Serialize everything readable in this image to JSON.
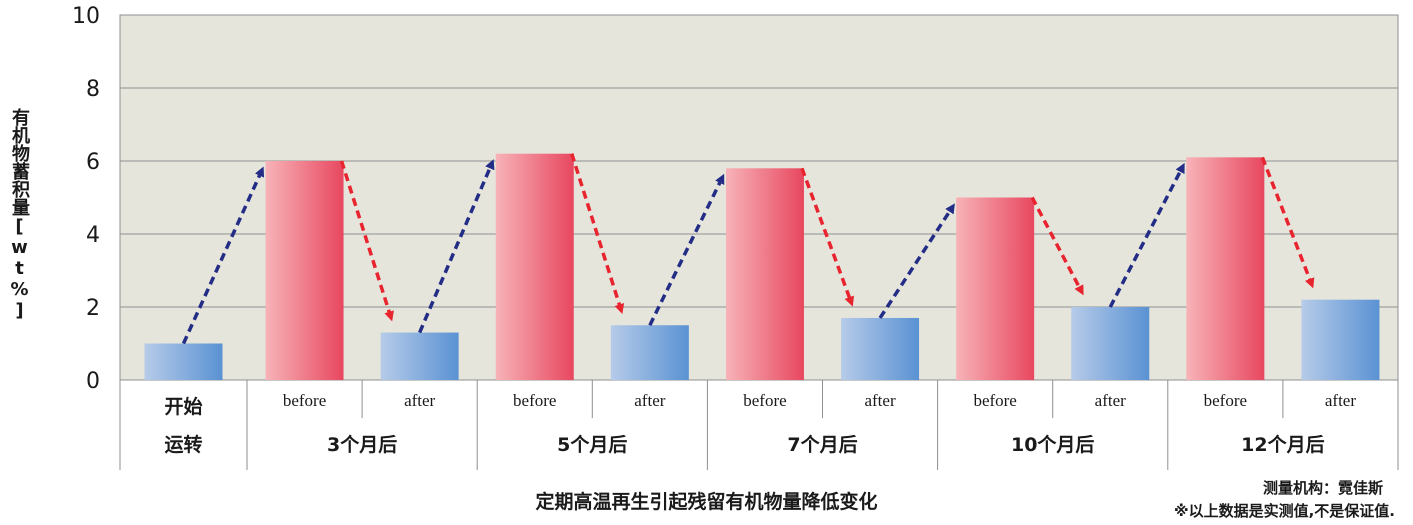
{
  "chart_data": {
    "type": "bar",
    "ylabel": "有机物蓄积量[wt%]",
    "xlabel": "定期高温再生引起残留有机物量降低变化",
    "ylim": [
      0,
      10
    ],
    "yticks": [
      0,
      2,
      4,
      6,
      8,
      10
    ],
    "grid": true,
    "categories": [
      "开始运转",
      "before",
      "after",
      "before",
      "after",
      "before",
      "after",
      "before",
      "after",
      "before",
      "after"
    ],
    "first_category_lines": [
      "开始",
      "运转"
    ],
    "groups": [
      "3个月后",
      "5个月后",
      "7个月后",
      "10个月后",
      "12个月后"
    ],
    "values": [
      1.0,
      6.0,
      1.3,
      6.2,
      1.5,
      5.8,
      1.7,
      5.0,
      2.0,
      6.1,
      2.2
    ],
    "kinds": [
      "after",
      "before",
      "after",
      "before",
      "after",
      "before",
      "after",
      "before",
      "after",
      "before",
      "after"
    ]
  },
  "notes": {
    "source": "测量机构：霓佳斯",
    "disclaimer": "※以上数据是实测值,不是保证值."
  },
  "colors": {
    "plot_bg": "#e6e5dc",
    "grid": "#8f8f8f",
    "before_bar_light": "#f7b3b8",
    "before_bar_dark": "#e8475f",
    "after_bar_light": "#b6cbe9",
    "after_bar_dark": "#5a92d3",
    "up_arrow": "#232d86",
    "down_arrow": "#e8242f"
  }
}
